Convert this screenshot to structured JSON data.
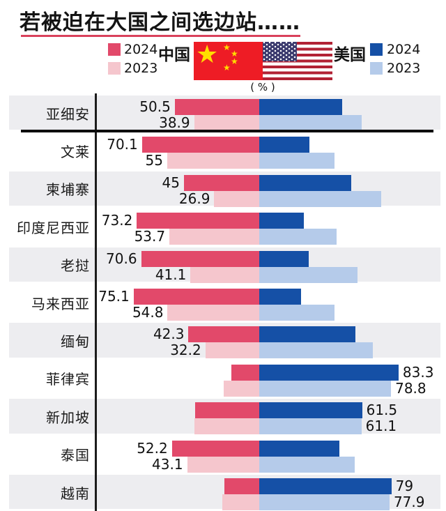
{
  "title": "若被迫在大国之间选边站……",
  "unit_label": "( % )",
  "legend": {
    "china_label": "中国",
    "us_label": "美国",
    "china_2024_label": "2024",
    "china_2023_label": "2023",
    "us_2024_label": "2024",
    "us_2023_label": "2023"
  },
  "colors": {
    "china_2024": "#e2496a",
    "china_2023": "#f5c6cd",
    "us_2024": "#1550a6",
    "us_2023": "#b5cbea",
    "row_bg": "#ededf0",
    "underline": "#d9415b",
    "cn_flag_red": "#ee1c25",
    "cn_flag_yellow": "#ffde00",
    "us_flag_red": "#b22234",
    "us_flag_blue": "#3c3b6e"
  },
  "chart_data": {
    "type": "bar",
    "subtype": "diverging-stacked-horizontal",
    "title": "若被迫在大国之间选边站……",
    "unit": "%",
    "legend_position": "top",
    "center_rule": "each row is a 100% stacked bar split at a shared center line; left segment = choose China, right segment = choose US",
    "series": [
      "中国 2024",
      "中国 2023",
      "美国 2024",
      "美国 2023"
    ],
    "separator_after_row_index": 0,
    "rows": [
      {
        "country": "亚细安",
        "china_2024": 50.5,
        "china_2023": 38.9,
        "us_2024": 49.5,
        "us_2023": 61.1,
        "label_side": "left",
        "label_2024": "50.5",
        "label_2023": "38.9"
      },
      {
        "country": "文莱",
        "china_2024": 70.1,
        "china_2023": 55,
        "us_2024": 29.9,
        "us_2023": 45,
        "label_side": "left",
        "label_2024": "70.1",
        "label_2023": "55"
      },
      {
        "country": "柬埔寨",
        "china_2024": 45,
        "china_2023": 26.9,
        "us_2024": 55,
        "us_2023": 73.1,
        "label_side": "left",
        "label_2024": "45",
        "label_2023": "26.9"
      },
      {
        "country": "印度尼西亚",
        "china_2024": 73.2,
        "china_2023": 53.7,
        "us_2024": 26.8,
        "us_2023": 46.3,
        "label_side": "left",
        "label_2024": "73.2",
        "label_2023": "53.7"
      },
      {
        "country": "老挝",
        "china_2024": 70.6,
        "china_2023": 41.1,
        "us_2024": 29.4,
        "us_2023": 58.9,
        "label_side": "left",
        "label_2024": "70.6",
        "label_2023": "41.1"
      },
      {
        "country": "马来西亚",
        "china_2024": 75.1,
        "china_2023": 54.8,
        "us_2024": 24.9,
        "us_2023": 45.2,
        "label_side": "left",
        "label_2024": "75.1",
        "label_2023": "54.8"
      },
      {
        "country": "缅甸",
        "china_2024": 42.3,
        "china_2023": 32.2,
        "us_2024": 57.7,
        "us_2023": 67.8,
        "label_side": "left",
        "label_2024": "42.3",
        "label_2023": "32.2"
      },
      {
        "country": "菲律宾",
        "china_2024": 16.7,
        "china_2023": 21.2,
        "us_2024": 83.3,
        "us_2023": 78.8,
        "label_side": "right",
        "label_2024": "83.3",
        "label_2023": "78.8"
      },
      {
        "country": "新加坡",
        "china_2024": 38.5,
        "china_2023": 38.9,
        "us_2024": 61.5,
        "us_2023": 61.1,
        "label_side": "right",
        "label_2024": "61.5",
        "label_2023": "61.1"
      },
      {
        "country": "泰国",
        "china_2024": 52.2,
        "china_2023": 43.1,
        "us_2024": 47.8,
        "us_2023": 56.9,
        "label_side": "left",
        "label_2024": "52.2",
        "label_2023": "43.1"
      },
      {
        "country": "越南",
        "china_2024": 21,
        "china_2023": 22.1,
        "us_2024": 79,
        "us_2023": 77.9,
        "label_side": "right",
        "label_2024": "79",
        "label_2023": "77.9"
      }
    ]
  }
}
